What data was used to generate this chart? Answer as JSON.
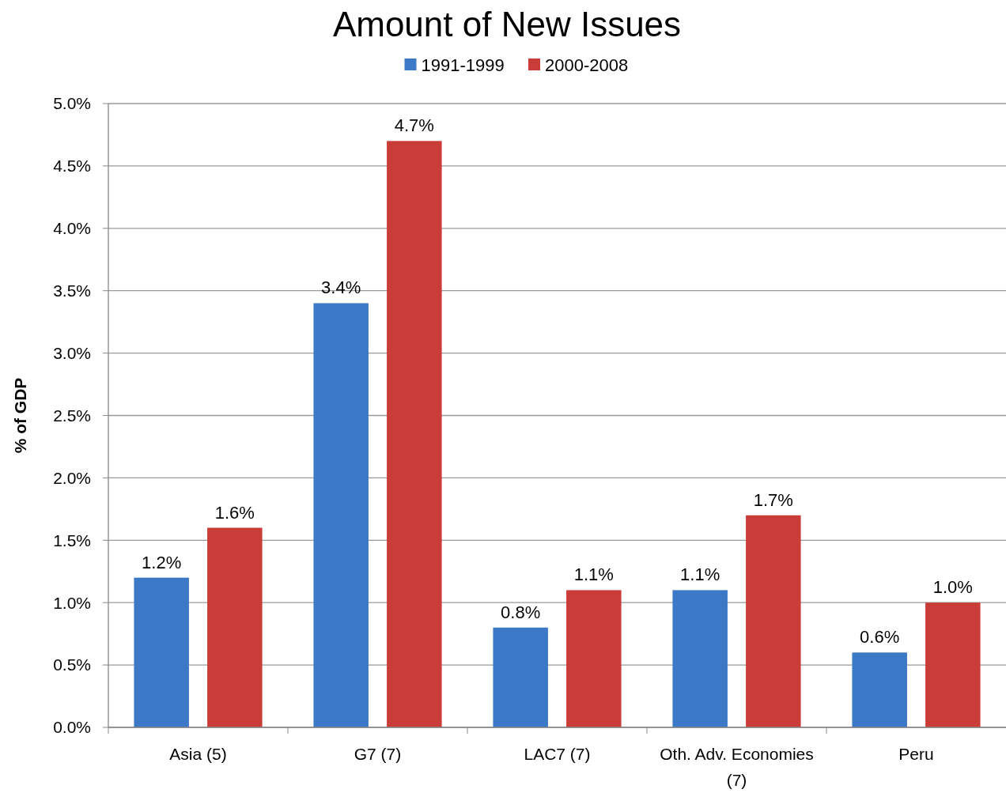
{
  "chart_data": {
    "type": "bar",
    "title": "Amount of New Issues",
    "ylabel": "% of GDP",
    "categories": [
      "Asia (5)",
      "G7 (7)",
      "LAC7 (7)",
      "Oth. Adv. Economies (7)",
      "Peru"
    ],
    "series": [
      {
        "name": "1991-1999",
        "color": "#3b78c6",
        "values": [
          1.2,
          3.4,
          0.8,
          1.1,
          0.6
        ],
        "value_labels": [
          "1.2%",
          "3.4%",
          "0.8%",
          "1.1%",
          "0.6%"
        ]
      },
      {
        "name": "2000-2008",
        "color": "#c93c38",
        "values": [
          1.6,
          4.7,
          1.1,
          1.7,
          1.0
        ],
        "value_labels": [
          "1.6%",
          "4.7%",
          "1.1%",
          "1.7%",
          "1.0%"
        ]
      }
    ],
    "ylim": [
      0,
      5
    ],
    "yticks": [
      {
        "value": 0,
        "label": "0.0%"
      },
      {
        "value": 0.5,
        "label": "0.5%"
      },
      {
        "value": 1,
        "label": "1.0%"
      },
      {
        "value": 1.5,
        "label": "1.5%"
      },
      {
        "value": 2,
        "label": "2.0%"
      },
      {
        "value": 2.5,
        "label": "2.5%"
      },
      {
        "value": 3,
        "label": "3.0%"
      },
      {
        "value": 3.5,
        "label": "3.5%"
      },
      {
        "value": 4,
        "label": "4.0%"
      },
      {
        "value": 4.5,
        "label": "4.5%"
      },
      {
        "value": 5,
        "label": "5.0%"
      }
    ],
    "grid": "y",
    "legend": "top"
  }
}
